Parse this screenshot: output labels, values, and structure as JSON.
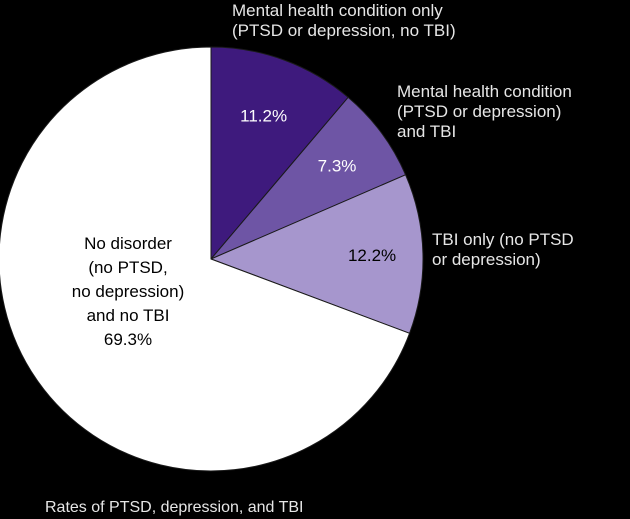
{
  "chart_data": {
    "type": "pie",
    "title": "",
    "caption": "Rates of PTSD, depression, and TBI",
    "slices": [
      {
        "label": "Mental health condition only (PTSD or depression, no TBI)",
        "label_lines": [
          "Mental health condition only",
          "(PTSD or depression, no TBI)"
        ],
        "value": 11.2,
        "value_label": "11.2%",
        "color": "#3e1a7d"
      },
      {
        "label": "Mental health condition (PTSD or depression) and TBI",
        "label_lines": [
          "Mental health condition",
          "(PTSD or depression)",
          "and TBI"
        ],
        "value": 7.3,
        "value_label": "7.3%",
        "color": "#6e55a5"
      },
      {
        "label": "TBI only (no PTSD or depression)",
        "label_lines": [
          "TBI only (no PTSD",
          "or depression)"
        ],
        "value": 12.2,
        "value_label": "12.2%",
        "color": "#a696cd"
      },
      {
        "label": "No disorder (no PTSD, no depression) and no TBI",
        "label_lines": [
          "No disorder",
          "(no PTSD,",
          "no depression)",
          "and no TBI",
          "69.3%"
        ],
        "value": 69.3,
        "value_label": "69.3%",
        "color": "#ffffff"
      }
    ]
  }
}
